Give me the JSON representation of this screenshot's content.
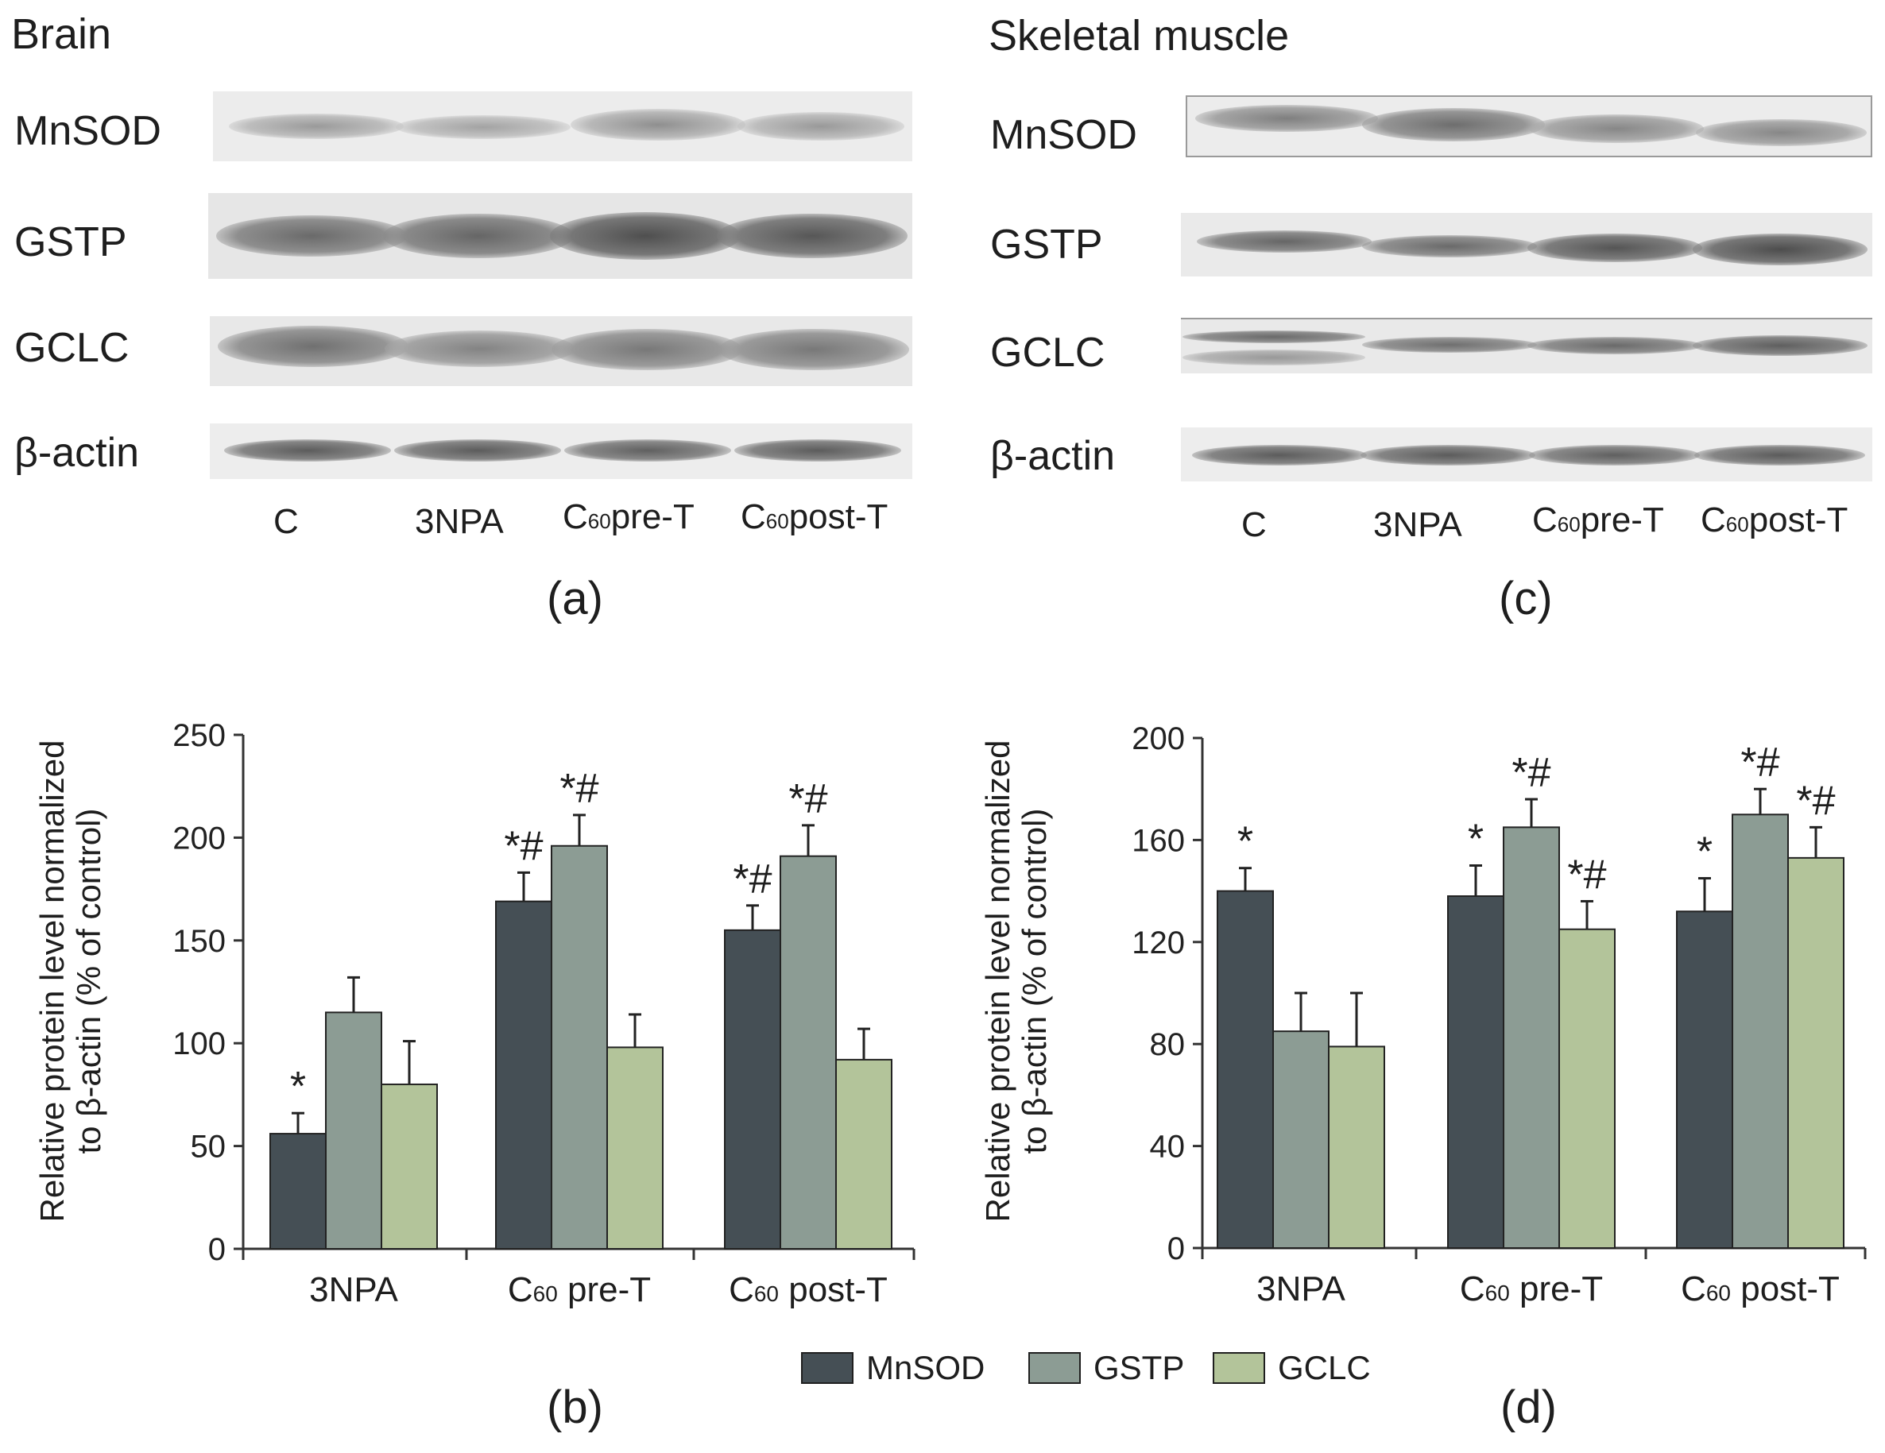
{
  "colors": {
    "MnSOD": "#454f55",
    "GSTP": "#8c9c94",
    "GCLC": "#b3c49a",
    "axis": "#333333",
    "band": "#5a5a5a"
  },
  "blots": {
    "brain": {
      "title": "Brain",
      "panel": "(a)",
      "rows": [
        "MnSOD",
        "GSTP",
        "GCLC",
        "β-actin"
      ],
      "lanes": [
        {
          "pre": "C",
          "sub": "",
          "post": ""
        },
        {
          "pre": "3NPA",
          "sub": "",
          "post": ""
        },
        {
          "pre": "C",
          "sub": "60",
          "post": "pre-T"
        },
        {
          "pre": "C",
          "sub": "60",
          "post": "post-T"
        }
      ]
    },
    "muscle": {
      "title": "Skeletal muscle",
      "panel": "(c)",
      "rows": [
        "MnSOD",
        "GSTP",
        "GCLC",
        "β-actin"
      ],
      "lanes": [
        {
          "pre": "C",
          "sub": "",
          "post": ""
        },
        {
          "pre": "3NPA",
          "sub": "",
          "post": ""
        },
        {
          "pre": "C",
          "sub": "60",
          "post": "pre-T"
        },
        {
          "pre": "C",
          "sub": "60",
          "post": "post-T"
        }
      ]
    }
  },
  "legend": [
    "MnSOD",
    "GSTP",
    "GCLC"
  ],
  "chart_data": [
    {
      "panel": "(b)",
      "type": "bar",
      "ylabel_line1": "Relative protein level normalized",
      "ylabel_line2": "to β-actin (% of control)",
      "ylim": [
        0,
        250
      ],
      "yticks": [
        0,
        50,
        100,
        150,
        200,
        250
      ],
      "categories": [
        {
          "pre": "3NPA",
          "sub": "",
          "post": ""
        },
        {
          "pre": "C",
          "sub": "60",
          "post": " pre-T"
        },
        {
          "pre": "C",
          "sub": "60",
          "post": " post-T"
        }
      ],
      "series": [
        {
          "name": "MnSOD",
          "values": [
            56,
            169,
            155
          ],
          "errors": [
            10,
            14,
            12
          ],
          "annotations": [
            "*",
            "*#",
            "*#"
          ]
        },
        {
          "name": "GSTP",
          "values": [
            115,
            196,
            191
          ],
          "errors": [
            17,
            15,
            15
          ],
          "annotations": [
            "",
            "*#",
            "*#"
          ]
        },
        {
          "name": "GCLC",
          "values": [
            80,
            98,
            92
          ],
          "errors": [
            21,
            16,
            15
          ],
          "annotations": [
            "",
            "",
            ""
          ]
        }
      ]
    },
    {
      "panel": "(d)",
      "type": "bar",
      "ylabel_line1": "Relative protein level normalized",
      "ylabel_line2": "to β-actin (% of control)",
      "ylim": [
        0,
        200
      ],
      "yticks": [
        0,
        40,
        80,
        120,
        160,
        200
      ],
      "categories": [
        {
          "pre": "3NPA",
          "sub": "",
          "post": ""
        },
        {
          "pre": "C",
          "sub": "60",
          "post": " pre-T"
        },
        {
          "pre": "C",
          "sub": "60",
          "post": " post-T"
        }
      ],
      "series": [
        {
          "name": "MnSOD",
          "values": [
            140,
            138,
            132
          ],
          "errors": [
            9,
            12,
            13
          ],
          "annotations": [
            "*",
            "*",
            "*"
          ]
        },
        {
          "name": "GSTP",
          "values": [
            85,
            165,
            170
          ],
          "errors": [
            15,
            11,
            10
          ],
          "annotations": [
            "",
            "*#",
            "*#"
          ]
        },
        {
          "name": "GCLC",
          "values": [
            79,
            125,
            153
          ],
          "errors": [
            21,
            11,
            12
          ],
          "annotations": [
            "",
            "*#",
            "*#"
          ]
        }
      ]
    }
  ]
}
